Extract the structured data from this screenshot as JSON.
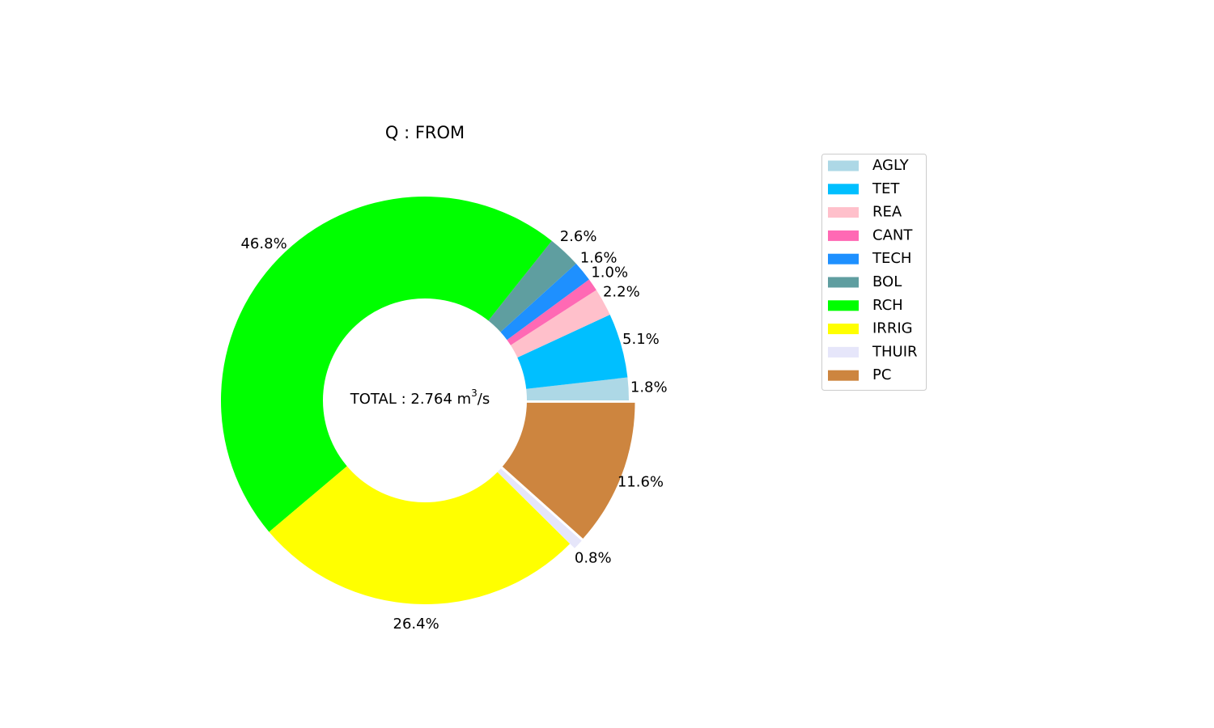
{
  "chart_data": {
    "type": "pie",
    "style": "donut",
    "title": "Q : FROM",
    "center_label": {
      "prefix": "TOTAL : 2.764 m",
      "superscript": "3",
      "suffix": "/s"
    },
    "slices": [
      {
        "label": "AGLY",
        "value": 1.8,
        "pct_label": "1.8%",
        "color": "#add8e6",
        "exploded": false
      },
      {
        "label": "TET",
        "value": 5.1,
        "pct_label": "5.1%",
        "color": "#00bfff",
        "exploded": false
      },
      {
        "label": "REA",
        "value": 2.2,
        "pct_label": "2.2%",
        "color": "#ffc0cb",
        "exploded": false
      },
      {
        "label": "CANT",
        "value": 1.0,
        "pct_label": "1.0%",
        "color": "#ff69b4",
        "exploded": false
      },
      {
        "label": "TECH",
        "value": 1.6,
        "pct_label": "1.6%",
        "color": "#1e90ff",
        "exploded": false
      },
      {
        "label": "BOL",
        "value": 2.6,
        "pct_label": "2.6%",
        "color": "#5f9ea0",
        "exploded": false
      },
      {
        "label": "RCH",
        "value": 46.8,
        "pct_label": "46.8%",
        "color": "#00ff00",
        "exploded": false
      },
      {
        "label": "IRRIG",
        "value": 26.4,
        "pct_label": "26.4%",
        "color": "#ffff00",
        "exploded": false
      },
      {
        "label": "THUIR",
        "value": 0.8,
        "pct_label": "0.8%",
        "color": "#e6e6fa",
        "exploded": true
      },
      {
        "label": "PC",
        "value": 11.6,
        "pct_label": "11.6%",
        "color": "#cd853f",
        "exploded": true
      }
    ],
    "start_angle_deg": 0,
    "direction": "counterclockwise",
    "legend_position": "right"
  }
}
